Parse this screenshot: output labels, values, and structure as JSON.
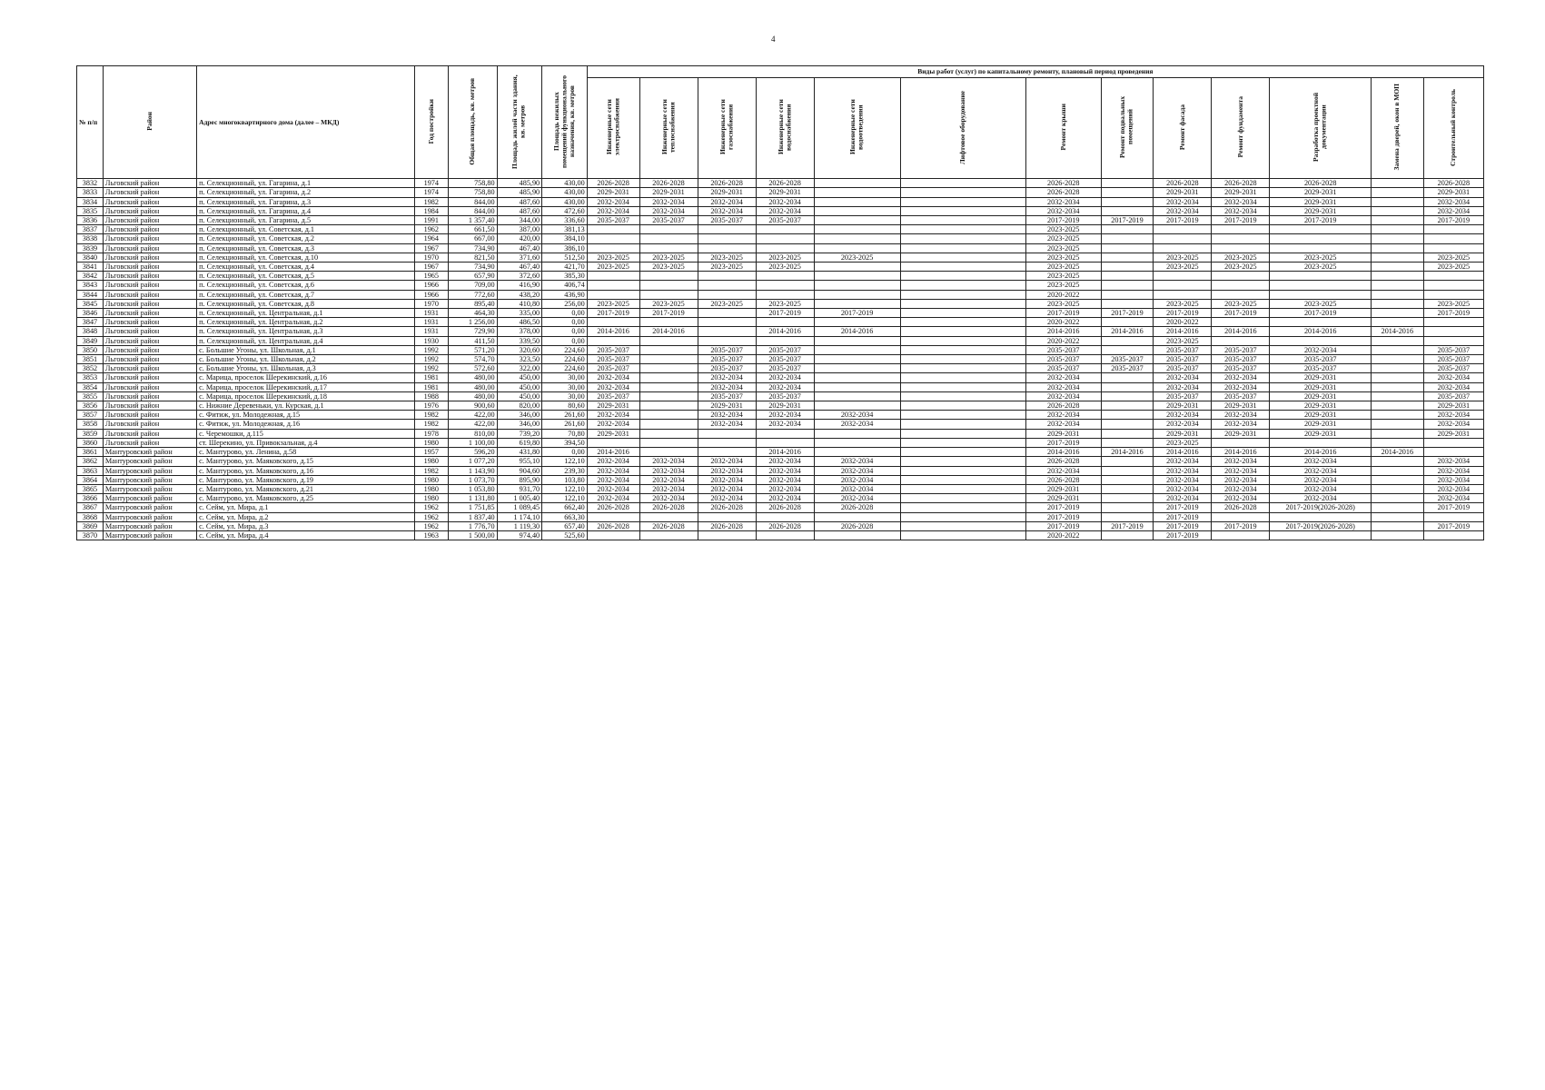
{
  "page_number": "4",
  "header": {
    "no": "№ п/п",
    "district": "Район",
    "address": "Адрес многоквартирного дома (далее – МКД)",
    "year": "Год постройки",
    "total_area": "Общая площадь, кв. метров",
    "living_area": "Площадь жилой части здания, кв. метров",
    "nonliving_area": "Площадь нежилых помещений функционального назначения, кв. метров",
    "works_group": "Виды работ (услуг) по капитальному ремонту, плановый период проведения",
    "works": [
      "Инженерные сети электроснабжения",
      "Инженерные сети теплоснабжения",
      "Инженерные сети газоснабжения",
      "Инженерные сети водоснабжения",
      "Инженерные сети водоотведения",
      "Лифтовое оборудование",
      "Ремонт крыши",
      "Ремонт подвальных помещений",
      "Ремонт фасада",
      "Ремонт фундамента",
      "Разработка проектной документации",
      "Замена дверей, окон в МОП",
      "Строительный контроль"
    ]
  },
  "rows": [
    [
      "3832",
      "Льговский район",
      "п. Селекционный, ул. Гагарина, д.1",
      "1974",
      "758,80",
      "485,90",
      "430,00",
      "2026-2028",
      "2026-2028",
      "2026-2028",
      "2026-2028",
      "",
      "",
      "2026-2028",
      "",
      "2026-2028",
      "2026-2028",
      "2026-2028",
      "",
      "2026-2028"
    ],
    [
      "3833",
      "Льговский район",
      "п. Селекционный, ул. Гагарина, д.2",
      "1974",
      "758,80",
      "485,90",
      "430,00",
      "2029-2031",
      "2029-2031",
      "2029-2031",
      "2029-2031",
      "",
      "",
      "2026-2028",
      "",
      "2029-2031",
      "2029-2031",
      "2029-2031",
      "",
      "2029-2031"
    ],
    [
      "3834",
      "Льговский район",
      "п. Селекционный, ул. Гагарина, д.3",
      "1982",
      "844,00",
      "487,60",
      "430,00",
      "2032-2034",
      "2032-2034",
      "2032-2034",
      "2032-2034",
      "",
      "",
      "2032-2034",
      "",
      "2032-2034",
      "2032-2034",
      "2029-2031",
      "",
      "2032-2034"
    ],
    [
      "3835",
      "Льговский район",
      "п. Селекционный, ул. Гагарина, д.4",
      "1984",
      "844,00",
      "487,60",
      "472,60",
      "2032-2034",
      "2032-2034",
      "2032-2034",
      "2032-2034",
      "",
      "",
      "2032-2034",
      "",
      "2032-2034",
      "2032-2034",
      "2029-2031",
      "",
      "2032-2034"
    ],
    [
      "3836",
      "Льговский район",
      "п. Селекционный, ул. Гагарина, д.5",
      "1991",
      "1 357,40",
      "344,00",
      "336,60",
      "2035-2037",
      "2035-2037",
      "2035-2037",
      "2035-2037",
      "",
      "",
      "2017-2019",
      "2017-2019",
      "2017-2019",
      "2017-2019",
      "2017-2019",
      "",
      "2017-2019"
    ],
    [
      "3837",
      "Льговский район",
      "п. Селекционный, ул. Советская, д.1",
      "1962",
      "661,50",
      "387,00",
      "381,13",
      "",
      "",
      "",
      "",
      "",
      "",
      "2023-2025",
      "",
      "",
      "",
      "",
      "",
      ""
    ],
    [
      "3838",
      "Льговский район",
      "п. Селекционный, ул. Советская, д.2",
      "1964",
      "667,00",
      "420,00",
      "384,10",
      "",
      "",
      "",
      "",
      "",
      "",
      "2023-2025",
      "",
      "",
      "",
      "",
      "",
      ""
    ],
    [
      "3839",
      "Льговский район",
      "п. Селекционный, ул. Советская, д.3",
      "1967",
      "734,90",
      "467,40",
      "386,10",
      "",
      "",
      "",
      "",
      "",
      "",
      "2023-2025",
      "",
      "",
      "",
      "",
      "",
      ""
    ],
    [
      "3840",
      "Льговский район",
      "п. Селекционный, ул. Советская, д.10",
      "1970",
      "821,50",
      "371,60",
      "512,50",
      "2023-2025",
      "2023-2025",
      "2023-2025",
      "2023-2025",
      "2023-2025",
      "",
      "2023-2025",
      "",
      "2023-2025",
      "2023-2025",
      "2023-2025",
      "",
      "2023-2025"
    ],
    [
      "3841",
      "Льговский район",
      "п. Селекционный, ул. Советская, д.4",
      "1967",
      "734,90",
      "467,40",
      "421,70",
      "2023-2025",
      "2023-2025",
      "2023-2025",
      "2023-2025",
      "",
      "",
      "2023-2025",
      "",
      "2023-2025",
      "2023-2025",
      "2023-2025",
      "",
      "2023-2025"
    ],
    [
      "3842",
      "Льговский район",
      "п. Селекционный, ул. Советская, д.5",
      "1965",
      "657,90",
      "372,60",
      "385,30",
      "",
      "",
      "",
      "",
      "",
      "",
      "2023-2025",
      "",
      "",
      "",
      "",
      "",
      ""
    ],
    [
      "3843",
      "Льговский район",
      "п. Селекционный, ул. Советская, д.6",
      "1966",
      "709,00",
      "416,90",
      "406,74",
      "",
      "",
      "",
      "",
      "",
      "",
      "2023-2025",
      "",
      "",
      "",
      "",
      "",
      ""
    ],
    [
      "3844",
      "Льговский район",
      "п. Селекционный, ул. Советская, д.7",
      "1966",
      "772,60",
      "438,20",
      "436,90",
      "",
      "",
      "",
      "",
      "",
      "",
      "2020-2022",
      "",
      "",
      "",
      "",
      "",
      ""
    ],
    [
      "3845",
      "Льговский район",
      "п. Селекционный, ул. Советская, д.8",
      "1970",
      "895,40",
      "410,80",
      "256,00",
      "2023-2025",
      "2023-2025",
      "2023-2025",
      "2023-2025",
      "",
      "",
      "2023-2025",
      "",
      "2023-2025",
      "2023-2025",
      "2023-2025",
      "",
      "2023-2025"
    ],
    [
      "3846",
      "Льговский район",
      "п. Селекционный, ул. Центральная, д.1",
      "1931",
      "464,30",
      "335,00",
      "0,00",
      "2017-2019",
      "2017-2019",
      "",
      "2017-2019",
      "2017-2019",
      "",
      "2017-2019",
      "2017-2019",
      "2017-2019",
      "2017-2019",
      "2017-2019",
      "",
      "2017-2019"
    ],
    [
      "3847",
      "Льговский район",
      "п. Селекционный, ул. Центральная, д.2",
      "1931",
      "1 256,00",
      "486,50",
      "0,00",
      "",
      "",
      "",
      "",
      "",
      "",
      "2020-2022",
      "",
      "2020-2022",
      "",
      "",
      "",
      ""
    ],
    [
      "3848",
      "Льговский район",
      "п. Селекционный, ул. Центральная, д.3",
      "1931",
      "729,90",
      "378,00",
      "0,00",
      "2014-2016",
      "2014-2016",
      "",
      "2014-2016",
      "2014-2016",
      "",
      "2014-2016",
      "2014-2016",
      "2014-2016",
      "2014-2016",
      "2014-2016",
      "2014-2016",
      ""
    ],
    [
      "3849",
      "Льговский район",
      "п. Селекционный, ул. Центральная, д.4",
      "1930",
      "411,50",
      "339,50",
      "0,00",
      "",
      "",
      "",
      "",
      "",
      "",
      "2020-2022",
      "",
      "2023-2025",
      "",
      "",
      "",
      ""
    ],
    [
      "3850",
      "Льговский район",
      "с. Большие Угоны, ул. Школьная, д.1",
      "1992",
      "571,20",
      "320,60",
      "224,60",
      "2035-2037",
      "",
      "2035-2037",
      "2035-2037",
      "",
      "",
      "2035-2037",
      "",
      "2035-2037",
      "2035-2037",
      "2032-2034",
      "",
      "2035-2037"
    ],
    [
      "3851",
      "Льговский район",
      "с. Большие Угоны, ул. Школьная, д.2",
      "1992",
      "574,70",
      "323,50",
      "224,60",
      "2035-2037",
      "",
      "2035-2037",
      "2035-2037",
      "",
      "",
      "2035-2037",
      "2035-2037",
      "2035-2037",
      "2035-2037",
      "2035-2037",
      "",
      "2035-2037"
    ],
    [
      "3852",
      "Льговский район",
      "с. Большие Угоны, ул. Школьная, д.3",
      "1992",
      "572,60",
      "322,00",
      "224,60",
      "2035-2037",
      "",
      "2035-2037",
      "2035-2037",
      "",
      "",
      "2035-2037",
      "2035-2037",
      "2035-2037",
      "2035-2037",
      "2035-2037",
      "",
      "2035-2037"
    ],
    [
      "3853",
      "Льговский район",
      "с. Марица, проселок Шерекинский, д.16",
      "1981",
      "480,00",
      "450,00",
      "30,00",
      "2032-2034",
      "",
      "2032-2034",
      "2032-2034",
      "",
      "",
      "2032-2034",
      "",
      "2032-2034",
      "2032-2034",
      "2029-2031",
      "",
      "2032-2034"
    ],
    [
      "3854",
      "Льговский район",
      "с. Марица, проселок Шерекинский, д.17",
      "1981",
      "480,00",
      "450,00",
      "30,00",
      "2032-2034",
      "",
      "2032-2034",
      "2032-2034",
      "",
      "",
      "2032-2034",
      "",
      "2032-2034",
      "2032-2034",
      "2029-2031",
      "",
      "2032-2034"
    ],
    [
      "3855",
      "Льговский район",
      "с. Марица, проселок Шерекинский, д.18",
      "1988",
      "480,00",
      "450,00",
      "30,00",
      "2035-2037",
      "",
      "2035-2037",
      "2035-2037",
      "",
      "",
      "2032-2034",
      "",
      "2035-2037",
      "2035-2037",
      "2029-2031",
      "",
      "2035-2037"
    ],
    [
      "3856",
      "Льговский район",
      "с. Нижние Деревеньки, ул. Курская, д.1",
      "1976",
      "900,60",
      "820,00",
      "80,60",
      "2029-2031",
      "",
      "2029-2031",
      "2029-2031",
      "",
      "",
      "2026-2028",
      "",
      "2029-2031",
      "2029-2031",
      "2029-2031",
      "",
      "2029-2031"
    ],
    [
      "3857",
      "Льговский район",
      "с. Фитиж, ул. Молодежная, д.15",
      "1982",
      "422,00",
      "346,00",
      "261,60",
      "2032-2034",
      "",
      "2032-2034",
      "2032-2034",
      "2032-2034",
      "",
      "2032-2034",
      "",
      "2032-2034",
      "2032-2034",
      "2029-2031",
      "",
      "2032-2034"
    ],
    [
      "3858",
      "Льговский район",
      "с. Фитиж, ул. Молодежная, д.16",
      "1982",
      "422,00",
      "346,00",
      "261,60",
      "2032-2034",
      "",
      "2032-2034",
      "2032-2034",
      "2032-2034",
      "",
      "2032-2034",
      "",
      "2032-2034",
      "2032-2034",
      "2029-2031",
      "",
      "2032-2034"
    ],
    [
      "3859",
      "Льговский район",
      "с. Черемошки, д.115",
      "1978",
      "810,00",
      "739,20",
      "70,80",
      "2029-2031",
      "",
      "",
      "",
      "",
      "",
      "2029-2031",
      "",
      "2029-2031",
      "2029-2031",
      "2029-2031",
      "",
      "2029-2031"
    ],
    [
      "3860",
      "Льговский район",
      "ст. Шерекино, ул. Привокзальная, д.4",
      "1980",
      "1 100,00",
      "619,80",
      "394,50",
      "",
      "",
      "",
      "",
      "",
      "",
      "2017-2019",
      "",
      "2023-2025",
      "",
      "",
      "",
      ""
    ],
    [
      "3861",
      "Мантуровский район",
      "с. Мантурово, ул. Ленина, д.58",
      "1957",
      "596,20",
      "431,80",
      "0,00",
      "2014-2016",
      "",
      "",
      "2014-2016",
      "",
      "",
      "2014-2016",
      "2014-2016",
      "2014-2016",
      "2014-2016",
      "2014-2016",
      "2014-2016",
      ""
    ],
    [
      "3862",
      "Мантуровский район",
      "с. Мантурово, ул. Маяковского, д.15",
      "1980",
      "1 077,20",
      "955,10",
      "122,10",
      "2032-2034",
      "2032-2034",
      "2032-2034",
      "2032-2034",
      "2032-2034",
      "",
      "2026-2028",
      "",
      "2032-2034",
      "2032-2034",
      "2032-2034",
      "",
      "2032-2034"
    ],
    [
      "3863",
      "Мантуровский район",
      "с. Мантурово, ул. Маяковского, д.16",
      "1982",
      "1 143,90",
      "904,60",
      "239,30",
      "2032-2034",
      "2032-2034",
      "2032-2034",
      "2032-2034",
      "2032-2034",
      "",
      "2032-2034",
      "",
      "2032-2034",
      "2032-2034",
      "2032-2034",
      "",
      "2032-2034"
    ],
    [
      "3864",
      "Мантуровский район",
      "с. Мантурово, ул. Маяковского, д.19",
      "1980",
      "1 073,70",
      "895,90",
      "103,80",
      "2032-2034",
      "2032-2034",
      "2032-2034",
      "2032-2034",
      "2032-2034",
      "",
      "2026-2028",
      "",
      "2032-2034",
      "2032-2034",
      "2032-2034",
      "",
      "2032-2034"
    ],
    [
      "3865",
      "Мантуровский район",
      "с. Мантурово, ул. Маяковского, д.21",
      "1980",
      "1 053,80",
      "931,70",
      "122,10",
      "2032-2034",
      "2032-2034",
      "2032-2034",
      "2032-2034",
      "2032-2034",
      "",
      "2029-2031",
      "",
      "2032-2034",
      "2032-2034",
      "2032-2034",
      "",
      "2032-2034"
    ],
    [
      "3866",
      "Мантуровский район",
      "с. Мантурово, ул. Маяковского, д.25",
      "1980",
      "1 131,80",
      "1 005,40",
      "122,10",
      "2032-2034",
      "2032-2034",
      "2032-2034",
      "2032-2034",
      "2032-2034",
      "",
      "2029-2031",
      "",
      "2032-2034",
      "2032-2034",
      "2032-2034",
      "",
      "2032-2034"
    ],
    [
      "3867",
      "Мантуровский район",
      "с. Сейм, ул. Мира, д.1",
      "1962",
      "1 751,85",
      "1 089,45",
      "662,40",
      "2026-2028",
      "2026-2028",
      "2026-2028",
      "2026-2028",
      "2026-2028",
      "",
      "2017-2019",
      "",
      "2017-2019",
      "2026-2028",
      "2017-2019(2026-2028)",
      "",
      "2017-2019"
    ],
    [
      "3868",
      "Мантуровский район",
      "с. Сейм, ул. Мира, д.2",
      "1962",
      "1 837,40",
      "1 174,10",
      "663,30",
      "",
      "",
      "",
      "",
      "",
      "",
      "2017-2019",
      "",
      "2017-2019",
      "",
      "",
      "",
      ""
    ],
    [
      "3869",
      "Мантуровский район",
      "с. Сейм, ул. Мира, д.3",
      "1962",
      "1 776,70",
      "1 119,30",
      "657,40",
      "2026-2028",
      "2026-2028",
      "2026-2028",
      "2026-2028",
      "2026-2028",
      "",
      "2017-2019",
      "2017-2019",
      "2017-2019",
      "2017-2019",
      "2017-2019(2026-2028)",
      "",
      "2017-2019"
    ],
    [
      "3870",
      "Мантуровский район",
      "с. Сейм, ул. Мира, д.4",
      "1963",
      "1 500,00",
      "974,40",
      "525,60",
      "",
      "",
      "",
      "",
      "",
      "",
      "2020-2022",
      "",
      "2017-2019",
      "",
      "",
      "",
      ""
    ]
  ]
}
